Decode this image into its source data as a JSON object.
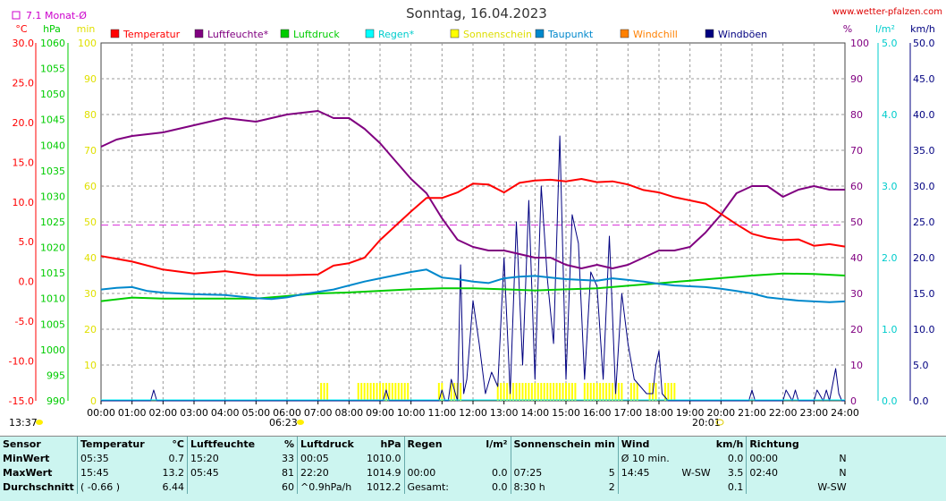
{
  "chart_data": {
    "type": "line",
    "title": "Sonntag, 16.04.2023",
    "source": "www.wetter-pfalzen.com",
    "monthly_avg_label": "7.1 Monat-Ø",
    "monthly_avg_value": 7.1,
    "axis_units": {
      "temp": "°C",
      "pressure": "hPa",
      "sun": "min",
      "humidity": "%",
      "rain": "l/m²",
      "wind": "km/h"
    },
    "x_ticks": [
      "00:00",
      "01:00",
      "02:00",
      "03:00",
      "04:00",
      "05:00",
      "06:00",
      "07:00",
      "08:00",
      "09:00",
      "10:00",
      "11:00",
      "12:00",
      "13:00",
      "14:00",
      "15:00",
      "16:00",
      "17:00",
      "18:00",
      "19:00",
      "20:00",
      "21:00",
      "22:00",
      "23:00",
      "24:00"
    ],
    "xlim": [
      0,
      24
    ],
    "temp_ticks": [
      "30.0",
      "25.0",
      "20.0",
      "15.0",
      "10.0",
      "5.0",
      "0.0",
      "-5.0",
      "-10.0",
      "-15.0"
    ],
    "ylim_temp": [
      -15,
      30
    ],
    "pressure_ticks": [
      "1060",
      "1055",
      "1050",
      "1045",
      "1040",
      "1035",
      "1030",
      "1025",
      "1020",
      "1015",
      "1010",
      "1005",
      "1000",
      "995",
      "990"
    ],
    "ylim_pressure": [
      990,
      1060
    ],
    "sun_ticks": [
      "100",
      "90",
      "80",
      "70",
      "60",
      "50",
      "40",
      "30",
      "20",
      "10",
      "0"
    ],
    "humidity_ticks": [
      "100",
      "90",
      "80",
      "70",
      "60",
      "50",
      "40",
      "30",
      "20",
      "10",
      "0"
    ],
    "ylim_percent": [
      0,
      100
    ],
    "rain_ticks": [
      "5.0",
      "4.0",
      "3.0",
      "2.0",
      "1.0",
      "0.0"
    ],
    "ylim_rain": [
      0,
      5
    ],
    "wind_ticks": [
      "50.0",
      "45.0",
      "40.0",
      "35.0",
      "30.0",
      "25.0",
      "20.0",
      "15.0",
      "10.0",
      "5.0",
      "0.0"
    ],
    "ylim_wind": [
      0,
      50
    ],
    "sunrise": "06:23",
    "sunset": "20:01",
    "left_time": "13:37",
    "legend": [
      {
        "name": "Temperatur",
        "color": "#ff0000"
      },
      {
        "name": "Luftfeuchte*",
        "color": "#800080"
      },
      {
        "name": "Luftdruck",
        "color": "#00cc00"
      },
      {
        "name": "Regen*",
        "color": "#00ffff"
      },
      {
        "name": "Sonnenschein",
        "color": "#ffff00"
      },
      {
        "name": "Taupunkt",
        "color": "#0088cc"
      },
      {
        "name": "Windchill",
        "color": "#ff8000"
      },
      {
        "name": "Windböen",
        "color": "#000080"
      }
    ],
    "series": [
      {
        "name": "Temperatur",
        "axis": "temp",
        "color": "#ff0000",
        "x": [
          0,
          1,
          2,
          3,
          4,
          5,
          6,
          7,
          7.5,
          8,
          8.5,
          9,
          9.5,
          10,
          10.5,
          11,
          11.5,
          12,
          12.5,
          13,
          13.5,
          14,
          14.5,
          15,
          15.5,
          16,
          16.5,
          17,
          17.5,
          18,
          18.5,
          19,
          19.5,
          20,
          20.5,
          21,
          21.5,
          22,
          22.5,
          23,
          23.5,
          24
        ],
        "y": [
          3.2,
          2.5,
          1.5,
          1.0,
          1.3,
          0.8,
          0.8,
          0.9,
          2.0,
          2.3,
          3.0,
          5.2,
          7.0,
          8.8,
          10.5,
          10.5,
          11.2,
          12.3,
          12.2,
          11.2,
          12.4,
          12.7,
          12.8,
          12.6,
          12.9,
          12.5,
          12.6,
          12.2,
          11.5,
          11.2,
          10.6,
          10.2,
          9.8,
          8.5,
          7.2,
          6.0,
          5.5,
          5.2,
          5.3,
          4.5,
          4.7,
          4.4
        ]
      },
      {
        "name": "Luftfeuchte*",
        "axis": "percent",
        "color": "#800080",
        "x": [
          0,
          0.5,
          1,
          2,
          3,
          4,
          5,
          6,
          7,
          7.5,
          8,
          8.5,
          9,
          9.5,
          10,
          10.5,
          11,
          11.5,
          12,
          12.5,
          13,
          13.5,
          14,
          14.5,
          15,
          15.5,
          16,
          16.5,
          17,
          17.5,
          18,
          18.5,
          19,
          19.5,
          20,
          20.5,
          21,
          21.5,
          22,
          22.5,
          23,
          23.5,
          24
        ],
        "y": [
          71,
          73,
          74,
          75,
          77,
          79,
          78,
          80,
          81,
          79,
          79,
          76,
          72,
          67,
          62,
          58,
          51,
          45,
          43,
          42,
          42,
          41,
          40,
          40,
          38,
          37,
          38,
          37,
          38,
          40,
          42,
          42,
          43,
          47,
          52,
          58,
          60,
          60,
          57,
          59,
          60,
          59,
          59
        ]
      },
      {
        "name": "Luftdruck",
        "axis": "pressure",
        "color": "#00cc00",
        "x": [
          0,
          1,
          2,
          3,
          4,
          5,
          6,
          7,
          8,
          9,
          10,
          11,
          12,
          13,
          14,
          15,
          16,
          17,
          18,
          19,
          20,
          21,
          22,
          23,
          24
        ],
        "y": [
          1009.5,
          1010.2,
          1010.0,
          1010.0,
          1010.0,
          1010.0,
          1010.5,
          1011.0,
          1011.2,
          1011.5,
          1011.8,
          1012.0,
          1012.0,
          1011.8,
          1011.6,
          1011.8,
          1012.0,
          1012.5,
          1013.0,
          1013.5,
          1014.0,
          1014.5,
          1014.9,
          1014.8,
          1014.5
        ]
      },
      {
        "name": "Taupunkt",
        "axis": "temp",
        "color": "#0088cc",
        "x": [
          0,
          0.5,
          1,
          1.5,
          2,
          3,
          4,
          5,
          5.5,
          6,
          6.5,
          7,
          7.5,
          8,
          8.5,
          9,
          9.5,
          10,
          10.5,
          11,
          11.5,
          12,
          12.5,
          13,
          13.5,
          14,
          14.5,
          15,
          15.5,
          16,
          16.5,
          17,
          17.5,
          18,
          18.5,
          19,
          19.5,
          20,
          20.5,
          21,
          21.5,
          22,
          22.5,
          23,
          23.5,
          24
        ],
        "y": [
          -1.0,
          -0.8,
          -0.7,
          -1.2,
          -1.4,
          -1.6,
          -1.7,
          -2.1,
          -2.2,
          -2.0,
          -1.6,
          -1.3,
          -1.0,
          -0.5,
          0.0,
          0.4,
          0.8,
          1.2,
          1.5,
          0.5,
          0.3,
          0.0,
          -0.2,
          0.4,
          0.6,
          0.7,
          0.5,
          0.3,
          0.2,
          0.1,
          0.4,
          0.2,
          0.0,
          -0.3,
          -0.5,
          -0.6,
          -0.7,
          -0.9,
          -1.2,
          -1.5,
          -2.0,
          -2.2,
          -2.4,
          -2.5,
          -2.6,
          -2.5
        ]
      },
      {
        "name": "Windböen",
        "axis": "wind",
        "color": "#000080",
        "x": [
          0,
          1.6,
          1.7,
          1.8,
          9.1,
          9.2,
          9.3,
          10.9,
          11.0,
          11.1,
          11.2,
          11.3,
          11.5,
          11.6,
          11.7,
          11.8,
          12.0,
          12.2,
          12.4,
          12.6,
          12.8,
          13.0,
          13.2,
          13.4,
          13.6,
          13.8,
          14.0,
          14.2,
          14.4,
          14.6,
          14.8,
          15.0,
          15.2,
          15.4,
          15.6,
          15.8,
          16.0,
          16.2,
          16.4,
          16.6,
          16.8,
          17.0,
          17.2,
          17.4,
          17.6,
          17.8,
          17.9,
          18.0,
          18.1,
          18.3,
          20.9,
          21.0,
          21.1,
          22.0,
          22.1,
          22.3,
          22.4,
          22.5,
          23.0,
          23.1,
          23.3,
          23.4,
          23.5,
          23.7,
          23.8,
          23.9,
          24.0
        ],
        "y": [
          0,
          0,
          1.5,
          0,
          0,
          1.5,
          0,
          0,
          1.5,
          0,
          0,
          3,
          0,
          19,
          1,
          3,
          14,
          8,
          1,
          4,
          2,
          20,
          1,
          25,
          5,
          28,
          3,
          30,
          17,
          8,
          37,
          3,
          26,
          22,
          3,
          18,
          16,
          3,
          23,
          1,
          15,
          8,
          3,
          2,
          1,
          1,
          5,
          7,
          1,
          0,
          0,
          1.5,
          0,
          0,
          1.5,
          0,
          1.5,
          0,
          0,
          1.5,
          0,
          1.5,
          0,
          4.5,
          1,
          0,
          0
        ]
      }
    ],
    "sunshine_intervals": [
      [
        7.1,
        7.3
      ],
      [
        8.3,
        9.9
      ],
      [
        10.9,
        11.0
      ],
      [
        11.3,
        11.6
      ],
      [
        12.8,
        15.3
      ],
      [
        15.6,
        16.8
      ],
      [
        17.1,
        17.3
      ],
      [
        17.7,
        17.9
      ],
      [
        18.2,
        18.5
      ]
    ],
    "sunshine_level": 5
  },
  "stats": {
    "headers": {
      "sensor": "Sensor",
      "temp": "Temperatur",
      "temp_unit": "°C",
      "hum": "Luftfeuchte",
      "hum_unit": "%",
      "press": "Luftdruck",
      "press_unit": "hPa",
      "rain": "Regen",
      "rain_unit": "l/m²",
      "sun": "Sonnenschein min",
      "wind": "Wind",
      "wind_unit": "km/h",
      "dir": "Richtung"
    },
    "rows": [
      {
        "label": "MinWert",
        "temp_time": "05:35",
        "temp_val": "0.7",
        "hum_time": "15:20",
        "hum_val": "33",
        "press_time": "00:05",
        "press_val": "1010.0",
        "rain_time": "",
        "rain_val": "",
        "sun_time": "",
        "sun_val": "",
        "wind_time": "Ø 10 min.",
        "wind_dir": "",
        "wind_val": "0.0",
        "dir_time": "00:00",
        "dir_val": "N"
      },
      {
        "label": "MaxWert",
        "temp_time": "15:45",
        "temp_val": "13.2",
        "hum_time": "05:45",
        "hum_val": "81",
        "press_time": "22:20",
        "press_val": "1014.9",
        "rain_time": "00:00",
        "rain_val": "0.0",
        "sun_time": "07:25",
        "sun_val": "5",
        "wind_time": "14:45",
        "wind_dir": "W-SW",
        "wind_val": "3.5",
        "dir_time": "02:40",
        "dir_val": "N"
      },
      {
        "label": "Durchschnitt",
        "temp_time": "( -0.66 )",
        "temp_val": "6.44",
        "hum_time": "",
        "hum_val": "60",
        "press_time": "^0.9hPa/h",
        "press_val": "1012.2",
        "rain_time": "Gesamt:",
        "rain_val": "0.0",
        "sun_time": "8:30 h",
        "sun_val": "2",
        "wind_time": "",
        "wind_dir": "",
        "wind_val": "0.1",
        "dir_time": "",
        "dir_val": "W-SW"
      }
    ]
  }
}
